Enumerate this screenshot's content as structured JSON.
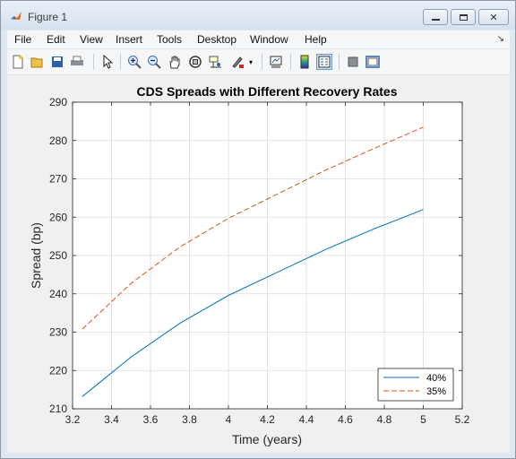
{
  "window": {
    "title": "Figure 1"
  },
  "menubar": {
    "items": [
      "File",
      "Edit",
      "View",
      "Insert",
      "Tools",
      "Desktop",
      "Window",
      "Help"
    ]
  },
  "icons": {
    "window_controls": [
      "minimize-icon",
      "maximize-icon",
      "close-icon"
    ],
    "toolbar": [
      "new-figure-icon",
      "open-file-icon",
      "save-icon",
      "print-icon",
      "edit-plot-icon",
      "zoom-in-icon",
      "zoom-out-icon",
      "pan-icon",
      "rotate-3d-icon",
      "data-cursor-icon",
      "brush-icon",
      "link-plot-icon",
      "insert-colorbar-icon",
      "insert-legend-icon",
      "hide-plot-tools-icon",
      "show-plot-tools-icon"
    ]
  },
  "colors": {
    "series_40": "#0072bd",
    "series_35": "#d95319",
    "grid": "#dcdcdc",
    "axes_bg": "#ffffff",
    "figure_bg": "#f0f0f0"
  },
  "chart_data": {
    "type": "line",
    "title": "CDS Spreads with Different Recovery Rates",
    "xlabel": "Time (years)",
    "ylabel": "Spread (bp)",
    "xlim": [
      3.2,
      5.2
    ],
    "ylim": [
      210,
      290
    ],
    "xticks": [
      "3.2",
      "3.4",
      "3.6",
      "3.8",
      "4",
      "4.2",
      "4.4",
      "4.6",
      "4.8",
      "5",
      "5.2"
    ],
    "yticks": [
      "210",
      "220",
      "230",
      "240",
      "250",
      "260",
      "270",
      "280",
      "290"
    ],
    "grid": true,
    "legend_position": "bottom-right",
    "x": [
      3.25,
      3.5,
      3.75,
      4.0,
      4.25,
      4.5,
      4.75,
      5.0
    ],
    "series": [
      {
        "name": "40%",
        "style": "solid",
        "values": [
          213.2,
          223.5,
          232.3,
          239.6,
          245.6,
          251.6,
          257.0,
          262.0
        ]
      },
      {
        "name": "35%",
        "style": "dashed",
        "values": [
          230.8,
          242.7,
          252.2,
          259.7,
          266.0,
          272.3,
          278.0,
          283.5
        ]
      }
    ]
  }
}
